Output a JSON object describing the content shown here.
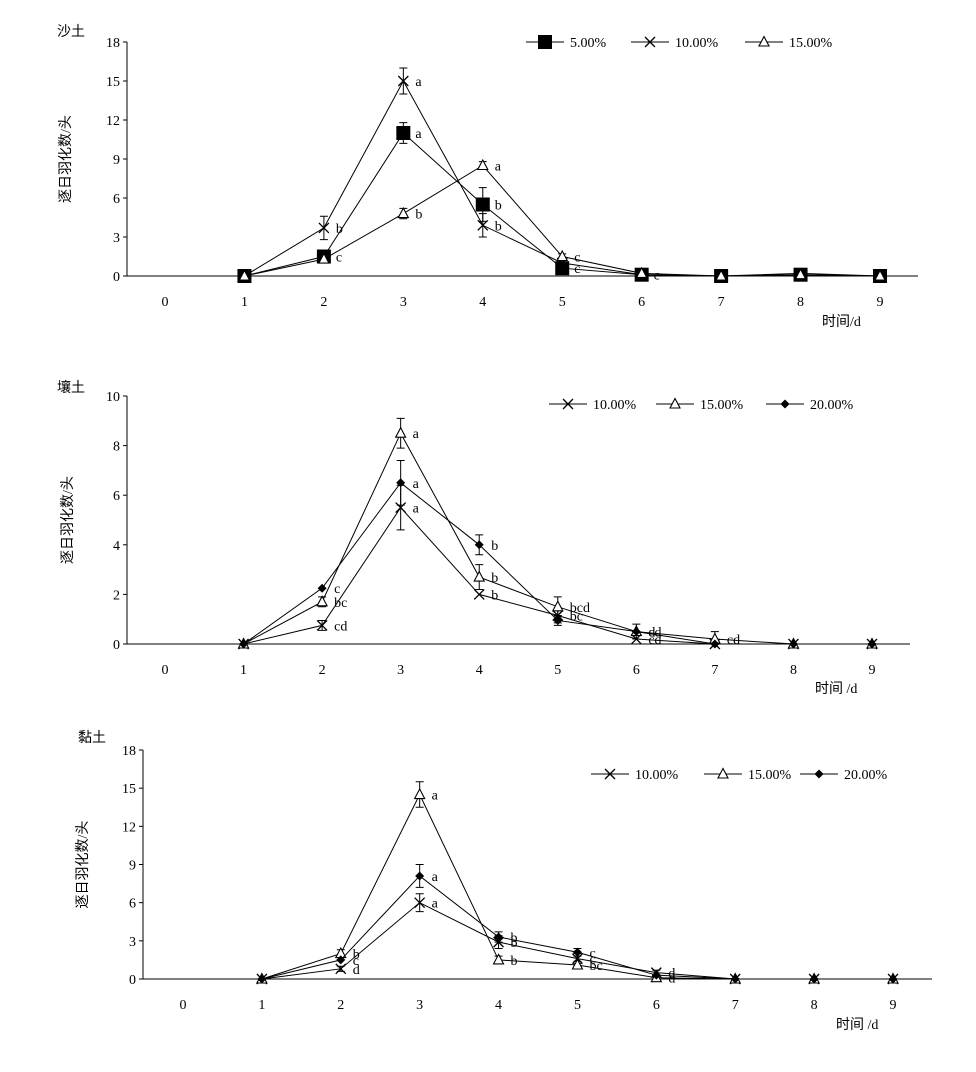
{
  "chart_data": [
    {
      "type": "line",
      "title": "沙土",
      "ylabel": "逐日羽化数/头",
      "xlabel": "时间/d",
      "ylim": [
        0,
        18
      ],
      "yticks": [
        "0",
        "3",
        "6",
        "9",
        "12",
        "15",
        "18"
      ],
      "xticks": [
        "0",
        "1",
        "2",
        "3",
        "4",
        "5",
        "6",
        "7",
        "8",
        "9"
      ],
      "legend_position": "top-right",
      "series": [
        {
          "name": "5.00%",
          "marker": "square-filled",
          "x": [
            1,
            2,
            3,
            4,
            5,
            6,
            7,
            8,
            9
          ],
          "y": [
            0,
            1.5,
            11.0,
            5.5,
            0.6,
            0.1,
            0,
            0.1,
            0
          ],
          "err": [
            0,
            0.3,
            0.8,
            1.3,
            0.2,
            0,
            0,
            0,
            0
          ],
          "labels": [
            "",
            "c",
            "a",
            "b",
            "c",
            "",
            "",
            "",
            ""
          ]
        },
        {
          "name": "10.00%",
          "marker": "x",
          "x": [
            1,
            2,
            3,
            4,
            5,
            6,
            7,
            8,
            9
          ],
          "y": [
            0,
            3.7,
            15.0,
            3.9,
            1.0,
            0.1,
            0,
            0.2,
            0
          ],
          "err": [
            0,
            0.9,
            1.0,
            0.9,
            0.2,
            0,
            0,
            0,
            0
          ],
          "labels": [
            "",
            "b",
            "a",
            "b",
            "",
            "c",
            "",
            "",
            ""
          ]
        },
        {
          "name": "15.00%",
          "marker": "triangle-open",
          "x": [
            1,
            2,
            3,
            4,
            5,
            6,
            7,
            8,
            9
          ],
          "y": [
            0,
            1.3,
            4.8,
            8.5,
            1.5,
            0.2,
            0,
            0.1,
            0
          ],
          "err": [
            0,
            0.2,
            0.4,
            0.3,
            0.2,
            0,
            0,
            0,
            0
          ],
          "labels": [
            "",
            "",
            "b",
            "a",
            "c",
            "",
            "",
            "",
            ""
          ]
        }
      ]
    },
    {
      "type": "line",
      "title": "壤土",
      "ylabel": "逐日羽化数/头",
      "xlabel": "时间 /d",
      "ylim": [
        0,
        10
      ],
      "yticks": [
        "0",
        "2",
        "4",
        "6",
        "8",
        "10"
      ],
      "xticks": [
        "0",
        "1",
        "2",
        "3",
        "4",
        "5",
        "6",
        "7",
        "8",
        "9"
      ],
      "legend_position": "top-right",
      "series": [
        {
          "name": "10.00%",
          "marker": "x",
          "x": [
            1,
            2,
            3,
            4,
            5,
            6,
            7,
            8,
            9
          ],
          "y": [
            0,
            0.75,
            5.5,
            2.0,
            1.15,
            0.2,
            0,
            0,
            0
          ],
          "err": [
            0,
            0.2,
            0.9,
            0,
            0.3,
            0,
            0,
            0,
            0
          ],
          "labels": [
            "",
            "cd",
            "a",
            "b",
            "bc",
            "cd",
            "",
            "",
            ""
          ]
        },
        {
          "name": "15.00%",
          "marker": "triangle-open",
          "x": [
            1,
            2,
            3,
            4,
            5,
            6,
            7,
            8,
            9
          ],
          "y": [
            0,
            1.7,
            8.5,
            2.7,
            1.5,
            0.5,
            0.2,
            0,
            0
          ],
          "err": [
            0,
            0.2,
            0.6,
            0.5,
            0.4,
            0.3,
            0.3,
            0,
            0
          ],
          "labels": [
            "",
            "bc",
            "a",
            "b",
            "bcd",
            "d",
            "cd",
            "",
            ""
          ]
        },
        {
          "name": "20.00%",
          "marker": "diamond-filled",
          "x": [
            1,
            2,
            3,
            4,
            5,
            6,
            7,
            8,
            9
          ],
          "y": [
            0,
            2.25,
            6.5,
            4.0,
            0.95,
            0.5,
            0,
            0,
            0
          ],
          "err": [
            0,
            0,
            0.9,
            0.4,
            0.2,
            0,
            0,
            0,
            0
          ],
          "labels": [
            "",
            "c",
            "a",
            "b",
            "",
            "cd",
            "",
            "",
            ""
          ]
        }
      ]
    },
    {
      "type": "line",
      "title": "黏土",
      "ylabel": "逐日羽化数/头",
      "xlabel": "时间 /d",
      "ylim": [
        0,
        18
      ],
      "yticks": [
        "0",
        "3",
        "6",
        "9",
        "12",
        "15",
        "18"
      ],
      "xticks": [
        "0",
        "1",
        "2",
        "3",
        "4",
        "5",
        "6",
        "7",
        "8",
        "9"
      ],
      "legend_position": "top-right",
      "series": [
        {
          "name": "10.00%",
          "marker": "x",
          "x": [
            1,
            2,
            3,
            4,
            5,
            6,
            7,
            8,
            9
          ],
          "y": [
            0,
            0.8,
            6.0,
            2.9,
            1.6,
            0.5,
            0,
            0,
            0
          ],
          "err": [
            0,
            0.2,
            0.7,
            0.5,
            0.4,
            0.2,
            0,
            0,
            0
          ],
          "labels": [
            "",
            "d",
            "a",
            "b",
            "c",
            "d",
            "",
            "",
            ""
          ]
        },
        {
          "name": "15.00%",
          "marker": "triangle-open",
          "x": [
            1,
            2,
            3,
            4,
            5,
            6,
            7,
            8,
            9
          ],
          "y": [
            0,
            2.0,
            14.5,
            1.5,
            1.1,
            0.1,
            0,
            0,
            0
          ],
          "err": [
            0,
            0.3,
            1.0,
            0.3,
            0.3,
            0,
            0,
            0,
            0
          ],
          "labels": [
            "",
            "b",
            "a",
            "b",
            "bc",
            "d",
            "",
            "",
            ""
          ]
        },
        {
          "name": "20.00%",
          "marker": "diamond-filled",
          "x": [
            1,
            2,
            3,
            4,
            5,
            6,
            7,
            8,
            9
          ],
          "y": [
            0,
            1.5,
            8.1,
            3.3,
            2.1,
            0.3,
            0,
            0,
            0
          ],
          "err": [
            0,
            0,
            0.9,
            0.4,
            0.3,
            0,
            0,
            0,
            0
          ],
          "labels": [
            "",
            "c",
            "a",
            "b",
            "c",
            "",
            "",
            "",
            ""
          ]
        }
      ]
    }
  ]
}
